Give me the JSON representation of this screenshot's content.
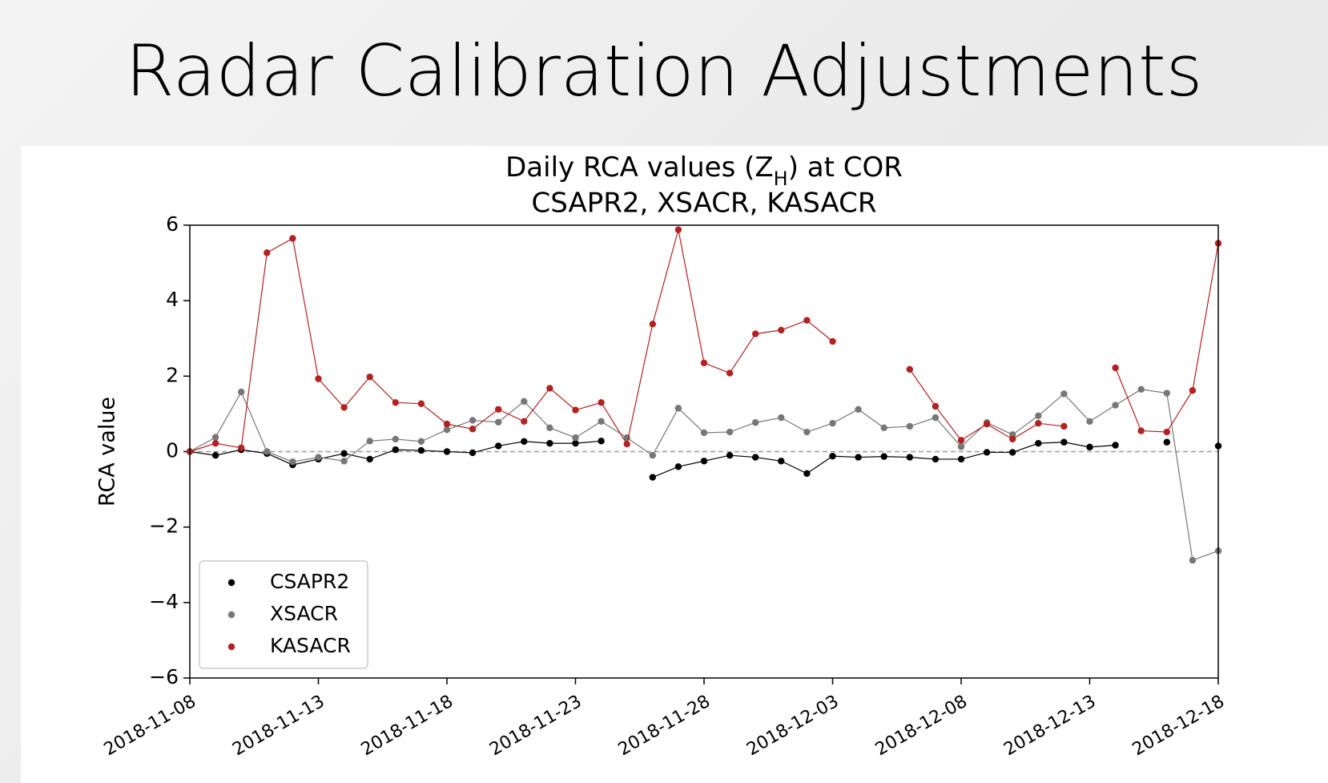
{
  "slide_title": "Radar Calibration Adjustments",
  "chart_data": {
    "type": "line",
    "title_parts": [
      "Daily RCA values (Z",
      "H",
      ") at COR"
    ],
    "subtitle": "CSAPR2, XSACR, KASACR",
    "y_label": "RCA value",
    "x": [
      "2018-11-08",
      "2018-11-09",
      "2018-11-10",
      "2018-11-11",
      "2018-11-12",
      "2018-11-13",
      "2018-11-14",
      "2018-11-15",
      "2018-11-16",
      "2018-11-17",
      "2018-11-18",
      "2018-11-19",
      "2018-11-20",
      "2018-11-21",
      "2018-11-22",
      "2018-11-23",
      "2018-11-24",
      "2018-11-25",
      "2018-11-26",
      "2018-11-27",
      "2018-11-28",
      "2018-11-29",
      "2018-11-30",
      "2018-12-01",
      "2018-12-02",
      "2018-12-03",
      "2018-12-04",
      "2018-12-05",
      "2018-12-06",
      "2018-12-07",
      "2018-12-08",
      "2018-12-09",
      "2018-12-10",
      "2018-12-11",
      "2018-12-12",
      "2018-12-13",
      "2018-12-14",
      "2018-12-15",
      "2018-12-16",
      "2018-12-17",
      "2018-12-18"
    ],
    "series": [
      {
        "name": "CSAPR2",
        "color": "#000000",
        "values": [
          0,
          -0.1,
          0.05,
          -0.05,
          -0.35,
          -0.2,
          -0.05,
          -0.2,
          0.05,
          0.03,
          0,
          -0.03,
          0.15,
          0.27,
          0.22,
          0.22,
          0.28,
          null,
          -0.68,
          -0.4,
          -0.25,
          -0.1,
          -0.15,
          -0.25,
          -0.58,
          -0.12,
          -0.15,
          -0.13,
          -0.15,
          -0.2,
          -0.2,
          -0.02,
          -0.02,
          0.22,
          0.25,
          0.12,
          0.17,
          null,
          0.25,
          null,
          0.15
        ]
      },
      {
        "name": "XSACR",
        "color": "#777777",
        "values": [
          0,
          0.38,
          1.58,
          0,
          -0.27,
          -0.15,
          -0.25,
          0.28,
          0.33,
          0.27,
          0.58,
          0.83,
          0.78,
          1.33,
          0.63,
          0.37,
          0.8,
          0.37,
          -0.1,
          1.15,
          0.5,
          0.52,
          0.77,
          0.9,
          0.52,
          0.75,
          1.12,
          0.63,
          0.67,
          0.9,
          0.13,
          0.77,
          0.45,
          0.95,
          1.53,
          0.8,
          1.23,
          1.65,
          1.55,
          -2.88,
          -2.63
        ]
      },
      {
        "name": "KASACR",
        "color": "#b22222",
        "values": [
          0,
          0.22,
          0.1,
          5.27,
          5.65,
          1.93,
          1.17,
          1.98,
          1.3,
          1.27,
          0.73,
          0.6,
          1.12,
          0.8,
          1.68,
          1.1,
          1.3,
          0.2,
          3.38,
          5.88,
          2.35,
          2.08,
          3.12,
          3.22,
          3.48,
          2.92,
          null,
          null,
          2.18,
          1.2,
          0.3,
          0.73,
          0.33,
          0.75,
          0.67,
          null,
          2.22,
          0.55,
          0.52,
          1.62,
          5.52
        ]
      }
    ],
    "xlim": [
      "2018-11-08",
      "2018-12-18"
    ],
    "xticks": [
      "2018-11-08",
      "2018-11-13",
      "2018-11-18",
      "2018-11-23",
      "2018-11-28",
      "2018-12-03",
      "2018-12-08",
      "2018-12-13",
      "2018-12-18"
    ],
    "ylim": [
      -6,
      6
    ],
    "yticks": [
      6,
      4,
      2,
      0,
      {
        "value": -2,
        "label": "−2"
      },
      {
        "value": -4,
        "label": "−4"
      },
      {
        "value": -6,
        "label": "−6"
      }
    ],
    "reference_line": 0,
    "legend": "lower left",
    "grid": false
  }
}
